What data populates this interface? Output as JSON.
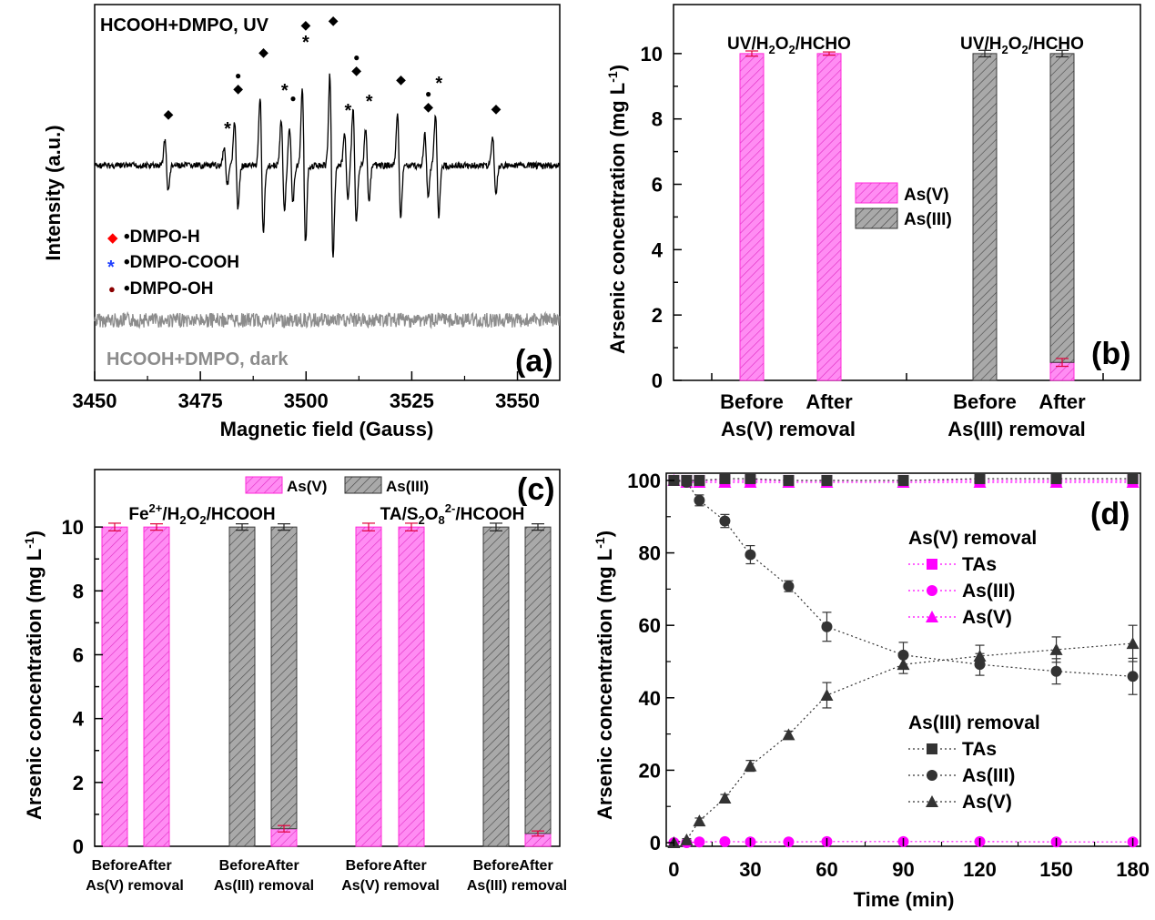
{
  "colors": {
    "as5_fill": "#ff8cf3",
    "as5_edge": "#ff2ad8",
    "as3_fill": "#a9a9a9",
    "as3_edge": "#3a3a3a",
    "magenta": "#ff00ff",
    "dark": "#333333",
    "red": "#ff0000",
    "blue": "#1f3fff",
    "darkred": "#8b0000",
    "gray": "#8c8c8c"
  },
  "chart_data": [
    {
      "panel": "(a)",
      "type": "line",
      "title": "HCOOH+DMPO, UV",
      "dark_label": "HCOOH+DMPO, dark",
      "xlabel": "Magnetic field (Gauss)",
      "ylabel": "Intensity (a.u.)",
      "xlim": [
        3450,
        3560
      ],
      "xticks": [
        "3450",
        "3475",
        "3500",
        "3525",
        "3550"
      ],
      "legend": [
        {
          "symbol": "◆",
          "label": "•DMPO-H",
          "color": "red"
        },
        {
          "symbol": "*",
          "label": "•DMPO-COOH",
          "color": "blue"
        },
        {
          "symbol": "●",
          "label": "•DMPO-OH",
          "color": "darkred"
        }
      ],
      "uv_peaks": [
        {
          "x": 3467,
          "amp": 42,
          "marks": [
            "red"
          ]
        },
        {
          "x": 3481,
          "amp": 30,
          "marks": [
            "blue"
          ]
        },
        {
          "x": 3483.5,
          "amp": 70,
          "marks": [
            "red",
            "darkred"
          ]
        },
        {
          "x": 3489.5,
          "amp": 110,
          "marks": [
            "red"
          ]
        },
        {
          "x": 3494.5,
          "amp": 72,
          "marks": [
            "blue"
          ]
        },
        {
          "x": 3496.5,
          "amp": 60,
          "marks": [
            "darkred"
          ]
        },
        {
          "x": 3499.5,
          "amp": 125,
          "marks": [
            "blue",
            "red"
          ]
        },
        {
          "x": 3506,
          "amp": 145,
          "marks": [
            "red"
          ]
        },
        {
          "x": 3509.5,
          "amp": 50,
          "marks": [
            "blue"
          ]
        },
        {
          "x": 3511.5,
          "amp": 90,
          "marks": [
            "red",
            "darkred"
          ]
        },
        {
          "x": 3514.5,
          "amp": 60,
          "marks": [
            "blue"
          ]
        },
        {
          "x": 3522,
          "amp": 80,
          "marks": [
            "red"
          ]
        },
        {
          "x": 3528.5,
          "amp": 50,
          "marks": [
            "red",
            "darkred"
          ]
        },
        {
          "x": 3531,
          "amp": 80,
          "marks": [
            "blue"
          ]
        },
        {
          "x": 3544.5,
          "amp": 48,
          "marks": [
            "red"
          ]
        }
      ]
    },
    {
      "panel": "(b)",
      "type": "bar",
      "ylabel": "Arsenic concentration (mg L-1)",
      "ylim": [
        0,
        11.5
      ],
      "yticks": [
        "0",
        "2",
        "4",
        "6",
        "8",
        "10"
      ],
      "group_titles": [
        "UV/H2O2/HCHO",
        "UV/H2O2/HCHO"
      ],
      "categories": [
        "Before",
        "After",
        "Before",
        "After"
      ],
      "group_labels": [
        "As(V) removal",
        "As(III) removal"
      ],
      "series": [
        {
          "name": "As(V)",
          "values": [
            10.0,
            10.0,
            0,
            0.55
          ],
          "errors": [
            0.08,
            0.05,
            0,
            0.12
          ]
        },
        {
          "name": "As(III)",
          "values": [
            0,
            0,
            10.0,
            9.45
          ],
          "errors": [
            0,
            0,
            0.1,
            0.1
          ]
        }
      ]
    },
    {
      "panel": "(c)",
      "type": "bar",
      "ylabel": "Arsenic concentration (mg L-1)",
      "ylim": [
        0,
        11.8
      ],
      "yticks": [
        "0",
        "2",
        "4",
        "6",
        "8",
        "10"
      ],
      "group_titles": [
        "Fe2+/H2O2/HCOOH",
        "TA/S2O82-/HCOOH"
      ],
      "categories": [
        "Before",
        "After",
        "Before",
        "After",
        "Before",
        "After",
        "Before",
        "After"
      ],
      "group_labels": [
        "As(V) removal",
        "As(III) removal",
        "As(V) removal",
        "As(III) removal"
      ],
      "series": [
        {
          "name": "As(V)",
          "values": [
            10.0,
            10.0,
            0,
            0.55,
            10.0,
            10.0,
            0,
            0.4
          ],
          "errors": [
            0.12,
            0.1,
            0,
            0.1,
            0.12,
            0.12,
            0,
            0.08
          ]
        },
        {
          "name": "As(III)",
          "values": [
            0,
            0,
            10.0,
            9.45,
            0,
            0,
            10.0,
            9.6
          ],
          "errors": [
            0,
            0,
            0.1,
            0.1,
            0,
            0,
            0.12,
            0.1
          ]
        }
      ]
    },
    {
      "panel": "(d)",
      "type": "line",
      "xlabel": "Time (min)",
      "ylabel": "Arsenic concentration (mg L-1)",
      "xlim": [
        -3,
        183
      ],
      "ylim": [
        -1,
        102
      ],
      "xticks": [
        "0",
        "30",
        "60",
        "90",
        "120",
        "150",
        "180"
      ],
      "yticks": [
        "0",
        "20",
        "40",
        "60",
        "80",
        "100"
      ],
      "x": [
        0,
        5,
        10,
        20,
        30,
        45,
        60,
        90,
        120,
        150,
        180
      ],
      "legend_titles": [
        "As(V) removal",
        "As(III) removal"
      ],
      "series": [
        {
          "name": "TAs",
          "group": "As(V) removal",
          "marker": "square",
          "color": "magenta",
          "values": [
            100,
            100,
            100,
            100,
            100,
            100,
            100,
            100,
            100,
            100,
            100
          ]
        },
        {
          "name": "As(III)",
          "group": "As(V) removal",
          "marker": "circle",
          "color": "magenta",
          "values": [
            0,
            0,
            0.2,
            0.3,
            0.2,
            0.2,
            0.3,
            0.3,
            0.3,
            0.2,
            0.2
          ]
        },
        {
          "name": "As(V)",
          "group": "As(V) removal",
          "marker": "triangle",
          "color": "magenta",
          "values": [
            100,
            99.5,
            99.5,
            99.5,
            99.5,
            99.5,
            99.5,
            99.5,
            99.5,
            99.5,
            99.5
          ]
        },
        {
          "name": "TAs",
          "group": "As(III) removal",
          "marker": "square",
          "color": "dark",
          "values": [
            100,
            100,
            100,
            100.5,
            100.5,
            100,
            100,
            100,
            100.5,
            100.5,
            100.5
          ]
        },
        {
          "name": "As(III)",
          "group": "As(III) removal",
          "marker": "circle",
          "color": "dark",
          "values": [
            100,
            99.5,
            94.5,
            88.8,
            79.5,
            70.8,
            59.6,
            51.8,
            49.2,
            47.3,
            45.9
          ],
          "errors": [
            0,
            0.5,
            1.5,
            1.8,
            2.5,
            1.5,
            4,
            3.5,
            3,
            3.5,
            5
          ]
        },
        {
          "name": "As(V)",
          "group": "As(III) removal",
          "marker": "triangle",
          "color": "dark",
          "values": [
            0,
            0.8,
            6,
            12.3,
            21.2,
            29.8,
            40.7,
            49.2,
            51.5,
            53.3,
            55
          ],
          "errors": [
            0,
            0.3,
            0.8,
            1,
            1.5,
            1,
            3.5,
            2.5,
            3,
            3.5,
            5
          ]
        }
      ]
    }
  ]
}
